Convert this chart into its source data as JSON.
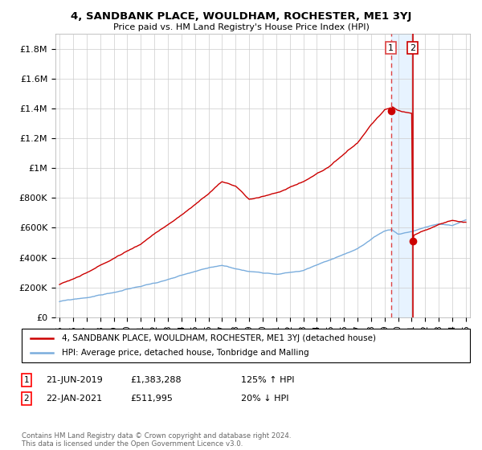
{
  "title": "4, SANDBANK PLACE, WOULDHAM, ROCHESTER, ME1 3YJ",
  "subtitle": "Price paid vs. HM Land Registry's House Price Index (HPI)",
  "ylabel_ticks": [
    "£0",
    "£200K",
    "£400K",
    "£600K",
    "£800K",
    "£1M",
    "£1.2M",
    "£1.4M",
    "£1.6M",
    "£1.8M"
  ],
  "ylabel_values": [
    0,
    200000,
    400000,
    600000,
    800000,
    1000000,
    1200000,
    1400000,
    1600000,
    1800000
  ],
  "ylim": [
    0,
    1900000
  ],
  "x_start_year": 1995,
  "x_end_year": 2025,
  "marker1_date": 2019.47,
  "marker1_value": 1383288,
  "marker1_label": "1",
  "marker2_date": 2021.06,
  "marker2_value": 511995,
  "marker2_label": "2",
  "legend_line1": "4, SANDBANK PLACE, WOULDHAM, ROCHESTER, ME1 3YJ (detached house)",
  "legend_line2": "HPI: Average price, detached house, Tonbridge and Malling",
  "row1_num": "1",
  "row1_date": "21-JUN-2019",
  "row1_price": "£1,383,288",
  "row1_hpi": "125% ↑ HPI",
  "row2_num": "2",
  "row2_date": "22-JAN-2021",
  "row2_price": "£511,995",
  "row2_hpi": "20% ↓ HPI",
  "footnote": "Contains HM Land Registry data © Crown copyright and database right 2024.\nThis data is licensed under the Open Government Licence v3.0.",
  "red_line_color": "#cc0000",
  "blue_line_color": "#7aaddd",
  "shade_color": "#ddeeff",
  "marker_dashed_color": "#dd4444",
  "marker_solid_color": "#cc0000",
  "grid_color": "#cccccc",
  "background_color": "#ffffff"
}
